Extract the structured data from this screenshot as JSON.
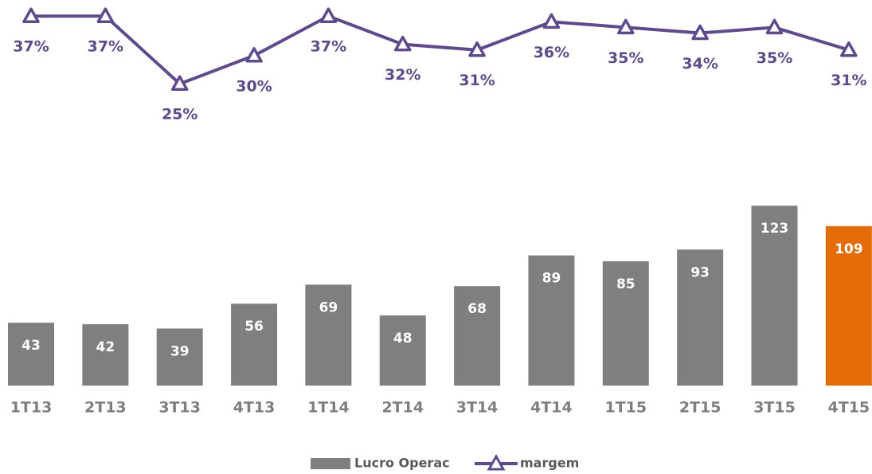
{
  "chart_data": {
    "type": "bar-line",
    "categories": [
      "1T13",
      "2T13",
      "3T13",
      "4T13",
      "1T14",
      "2T14",
      "3T14",
      "4T14",
      "1T15",
      "2T15",
      "3T15",
      "4T15"
    ],
    "series": [
      {
        "name": "Lucro Operac",
        "type": "bar",
        "color": "#7f7f7f",
        "colors": [
          "#7f7f7f",
          "#7f7f7f",
          "#7f7f7f",
          "#7f7f7f",
          "#7f7f7f",
          "#7f7f7f",
          "#7f7f7f",
          "#7f7f7f",
          "#7f7f7f",
          "#7f7f7f",
          "#7f7f7f",
          "#e36c09"
        ],
        "values": [
          43,
          42,
          39,
          56,
          69,
          48,
          68,
          89,
          85,
          93,
          123,
          109
        ]
      },
      {
        "name": "margem",
        "type": "line",
        "axis": "y2",
        "color": "#5f4b8b",
        "values": [
          37,
          37,
          25,
          30,
          37,
          32,
          31,
          36,
          35,
          34,
          35,
          31
        ],
        "value_labels": [
          "37%",
          "37%",
          "25%",
          "30%",
          "37%",
          "32%",
          "31%",
          "36%",
          "35%",
          "34%",
          "35%",
          "31%"
        ]
      }
    ],
    "ylim": [
      0,
      140
    ],
    "y2lim": [
      20,
      40
    ],
    "legend": "bottom"
  }
}
